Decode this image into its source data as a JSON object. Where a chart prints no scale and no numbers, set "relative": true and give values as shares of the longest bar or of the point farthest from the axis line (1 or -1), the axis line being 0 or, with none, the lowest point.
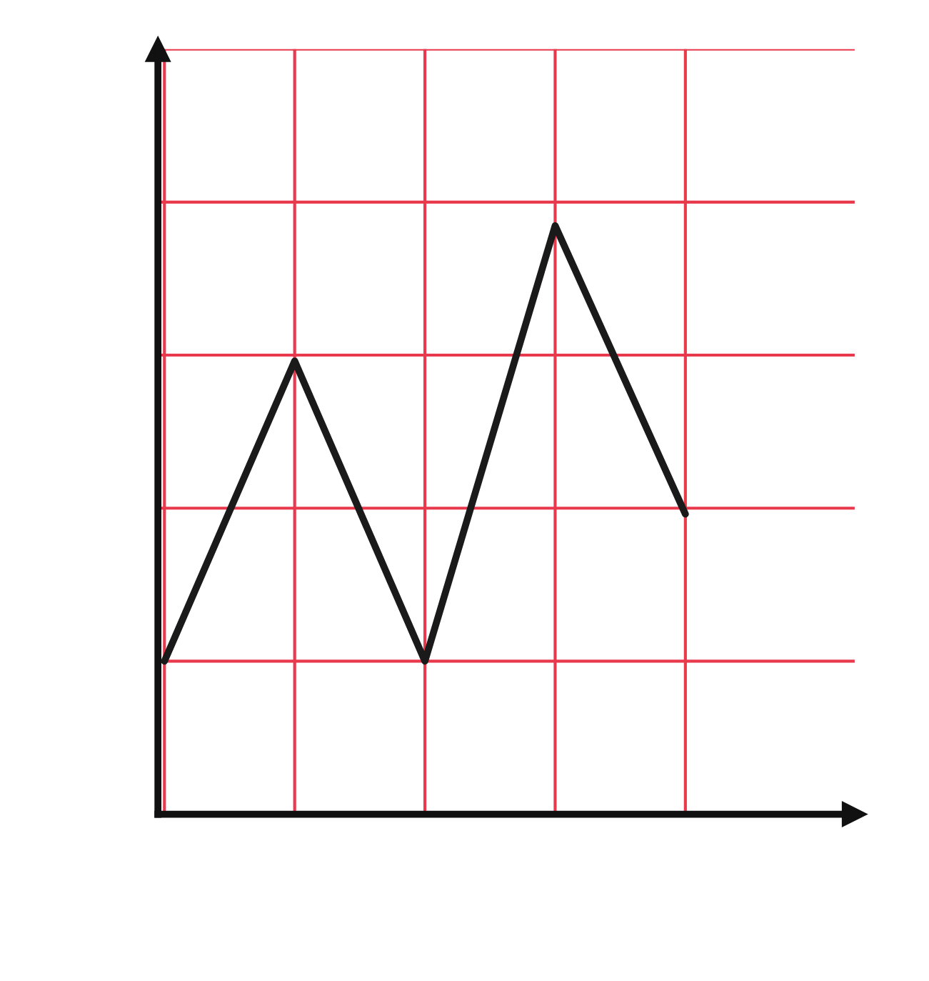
{
  "chart_data": {
    "type": "line",
    "relative": true,
    "categories": [
      null,
      null,
      null,
      null,
      null
    ],
    "series": [
      {
        "color": "#1a1a1a",
        "values": [
          0.26,
          0.77,
          0.26,
          1,
          0.51
        ]
      }
    ],
    "grid": true,
    "tick_labels": false,
    "line_style": "solid"
  }
}
